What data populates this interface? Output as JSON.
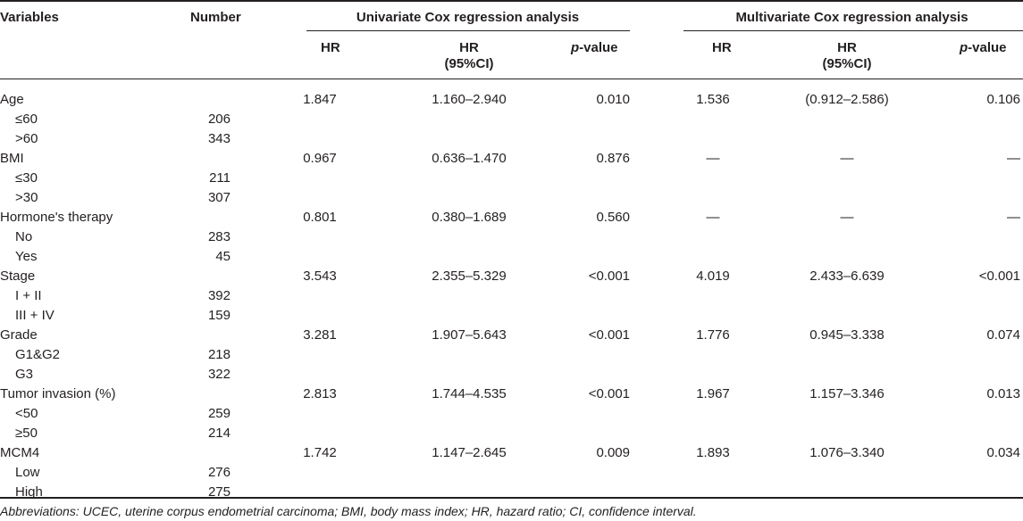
{
  "header": {
    "variables": "Variables",
    "number": "Number",
    "univariate": "Univariate Cox regression analysis",
    "multivariate": "Multivariate Cox regression analysis",
    "hr": "HR",
    "hr_ci_1": "HR",
    "hr_ci_2": "(95%CI)",
    "p_italic": "p",
    "p_rest": "-value"
  },
  "rows": [
    {
      "label": "Age",
      "indent": false,
      "number": "",
      "uhr": "1.847",
      "uci": "1.160–2.940",
      "up": "0.010",
      "mhr": "1.536",
      "mci": "(0.912–2.586)",
      "mp": "0.106"
    },
    {
      "label": "≤60",
      "indent": true,
      "number": "206",
      "uhr": "",
      "uci": "",
      "up": "",
      "mhr": "",
      "mci": "",
      "mp": ""
    },
    {
      "label": ">60",
      "indent": true,
      "number": "343",
      "uhr": "",
      "uci": "",
      "up": "",
      "mhr": "",
      "mci": "",
      "mp": ""
    },
    {
      "label": "BMI",
      "indent": false,
      "number": "",
      "uhr": "0.967",
      "uci": "0.636–1.470",
      "up": "0.876",
      "mhr": "—",
      "mci": "—",
      "mp": "—"
    },
    {
      "label": "≤30",
      "indent": true,
      "number": "211",
      "uhr": "",
      "uci": "",
      "up": "",
      "mhr": "",
      "mci": "",
      "mp": ""
    },
    {
      "label": ">30",
      "indent": true,
      "number": "307",
      "uhr": "",
      "uci": "",
      "up": "",
      "mhr": "",
      "mci": "",
      "mp": ""
    },
    {
      "label": "Hormone's therapy",
      "indent": false,
      "number": "",
      "uhr": "0.801",
      "uci": "0.380–1.689",
      "up": "0.560",
      "mhr": "—",
      "mci": "—",
      "mp": "—"
    },
    {
      "label": "No",
      "indent": true,
      "number": "283",
      "uhr": "",
      "uci": "",
      "up": "",
      "mhr": "",
      "mci": "",
      "mp": ""
    },
    {
      "label": "Yes",
      "indent": true,
      "number": "45",
      "uhr": "",
      "uci": "",
      "up": "",
      "mhr": "",
      "mci": "",
      "mp": ""
    },
    {
      "label": "Stage",
      "indent": false,
      "number": "",
      "uhr": "3.543",
      "uci": "2.355–5.329",
      "up": "<0.001",
      "mhr": "4.019",
      "mci": "2.433–6.639",
      "mp": "<0.001"
    },
    {
      "label": "I + II",
      "indent": true,
      "number": "392",
      "uhr": "",
      "uci": "",
      "up": "",
      "mhr": "",
      "mci": "",
      "mp": ""
    },
    {
      "label": "III + IV",
      "indent": true,
      "number": "159",
      "uhr": "",
      "uci": "",
      "up": "",
      "mhr": "",
      "mci": "",
      "mp": ""
    },
    {
      "label": "Grade",
      "indent": false,
      "number": "",
      "uhr": "3.281",
      "uci": "1.907–5.643",
      "up": "<0.001",
      "mhr": "1.776",
      "mci": "0.945–3.338",
      "mp": "0.074"
    },
    {
      "label": "G1&G2",
      "indent": true,
      "number": "218",
      "uhr": "",
      "uci": "",
      "up": "",
      "mhr": "",
      "mci": "",
      "mp": ""
    },
    {
      "label": "G3",
      "indent": true,
      "number": "322",
      "uhr": "",
      "uci": "",
      "up": "",
      "mhr": "",
      "mci": "",
      "mp": ""
    },
    {
      "label": "Tumor invasion (%)",
      "indent": false,
      "number": "",
      "uhr": "2.813",
      "uci": "1.744–4.535",
      "up": "<0.001",
      "mhr": "1.967",
      "mci": "1.157–3.346",
      "mp": "0.013"
    },
    {
      "label": "<50",
      "indent": true,
      "number": "259",
      "uhr": "",
      "uci": "",
      "up": "",
      "mhr": "",
      "mci": "",
      "mp": ""
    },
    {
      "label": "≥50",
      "indent": true,
      "number": "214",
      "uhr": "",
      "uci": "",
      "up": "",
      "mhr": "",
      "mci": "",
      "mp": ""
    },
    {
      "label": "MCM4",
      "indent": false,
      "number": "",
      "uhr": "1.742",
      "uci": "1.147–2.645",
      "up": "0.009",
      "mhr": "1.893",
      "mci": "1.076–3.340",
      "mp": "0.034"
    },
    {
      "label": "Low",
      "indent": true,
      "number": "276",
      "uhr": "",
      "uci": "",
      "up": "",
      "mhr": "",
      "mci": "",
      "mp": ""
    },
    {
      "label": "High",
      "indent": true,
      "number": "275",
      "uhr": "",
      "uci": "",
      "up": "",
      "mhr": "",
      "mci": "",
      "mp": ""
    }
  ],
  "footnote": "Abbreviations: UCEC, uterine corpus endometrial carcinoma; BMI, body mass index; HR, hazard ratio; CI, confidence interval."
}
